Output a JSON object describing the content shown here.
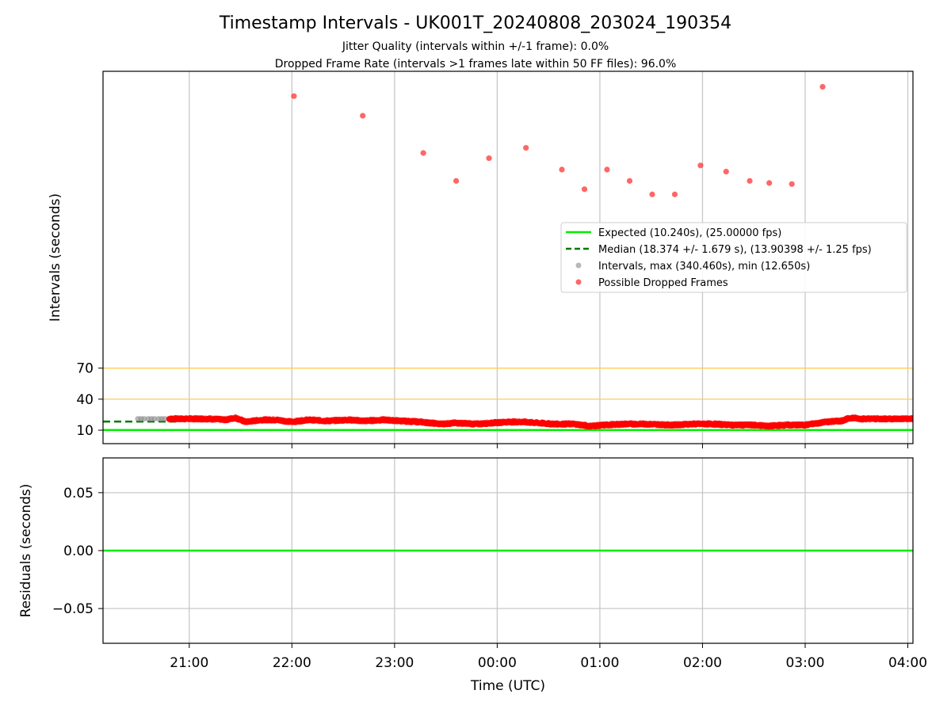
{
  "figure": {
    "title": "Timestamp Intervals - UK001T_20240808_203024_190354",
    "subtitle_1": "Jitter Quality (intervals within +/-1 frame): 0.0%",
    "subtitle_2": "Dropped Frame Rate (intervals >1 frames late within 50 FF files): 96.0%"
  },
  "colors": {
    "expected": "#00ee00",
    "median": "#007700",
    "dropped": "#ff0000",
    "intervals": "#888888",
    "threshold": "#ffcc55",
    "grid": "#c8c8c8"
  },
  "chart_data": [
    {
      "id": "intervals",
      "type": "scatter",
      "xlabel": "",
      "ylabel": "Intervals (seconds)",
      "x_unit": "hours_since_midnight_2024-08-08_UTC",
      "xlim": [
        20.16,
        28.05
      ],
      "ylim": [
        -3,
        357
      ],
      "yticks": [
        10,
        40,
        70
      ],
      "xticks": [
        21,
        22,
        23,
        24,
        25,
        26,
        27,
        28
      ],
      "xticklabels": [
        "21:00",
        "22:00",
        "23:00",
        "00:00",
        "01:00",
        "02:00",
        "03:00",
        "04:00"
      ],
      "grid": "vertical",
      "legend_position": "center-right",
      "legend": [
        {
          "label": "Expected (10.240s), (25.00000 fps)",
          "kind": "line"
        },
        {
          "label": "Median (18.374 +/- 1.679 s), (13.90398 +/- 1.25 fps)",
          "kind": "dashed"
        },
        {
          "label": "Intervals, max (340.460s), min (12.650s)",
          "kind": "dot-gray"
        },
        {
          "label": "Possible Dropped Frames",
          "kind": "dot-red"
        }
      ],
      "lines": {
        "expected": 10.24,
        "median": 18.374,
        "median_x_start": 20.16,
        "median_x_end": 20.87,
        "thresholds": [
          40,
          70
        ]
      },
      "series": [
        {
          "name": "Intervals, max (340.460s), min (12.650s)",
          "points": [
            {
              "x": 20.5,
              "y": 21
            },
            {
              "x": 20.53,
              "y": 21
            },
            {
              "x": 20.56,
              "y": 21
            },
            {
              "x": 20.6,
              "y": 21
            },
            {
              "x": 20.63,
              "y": 21
            },
            {
              "x": 20.66,
              "y": 21
            },
            {
              "x": 20.7,
              "y": 21
            },
            {
              "x": 20.73,
              "y": 21
            },
            {
              "x": 20.76,
              "y": 21
            }
          ]
        },
        {
          "name": "Possible Dropped Frames",
          "outliers": [
            {
              "x": 22.02,
              "y": 333
            },
            {
              "x": 22.69,
              "y": 314
            },
            {
              "x": 23.28,
              "y": 278
            },
            {
              "x": 23.6,
              "y": 251
            },
            {
              "x": 23.92,
              "y": 273
            },
            {
              "x": 24.28,
              "y": 283
            },
            {
              "x": 24.63,
              "y": 262
            },
            {
              "x": 24.85,
              "y": 243
            },
            {
              "x": 25.07,
              "y": 262
            },
            {
              "x": 25.29,
              "y": 251
            },
            {
              "x": 25.51,
              "y": 238
            },
            {
              "x": 25.73,
              "y": 238
            },
            {
              "x": 25.98,
              "y": 266
            },
            {
              "x": 26.23,
              "y": 260
            },
            {
              "x": 26.46,
              "y": 251
            },
            {
              "x": 26.65,
              "y": 249
            },
            {
              "x": 26.87,
              "y": 248
            },
            {
              "x": 27.17,
              "y": 342
            }
          ],
          "band_profile": [
            [
              20.8,
              21
            ],
            [
              21.0,
              21
            ],
            [
              21.2,
              21
            ],
            [
              21.35,
              20
            ],
            [
              21.45,
              22
            ],
            [
              21.55,
              18
            ],
            [
              21.7,
              20
            ],
            [
              21.85,
              20
            ],
            [
              22.0,
              18
            ],
            [
              22.15,
              20
            ],
            [
              22.35,
              19
            ],
            [
              22.55,
              20
            ],
            [
              22.7,
              19
            ],
            [
              22.9,
              20
            ],
            [
              23.05,
              19
            ],
            [
              23.25,
              18
            ],
            [
              23.45,
              16
            ],
            [
              23.6,
              17
            ],
            [
              23.8,
              16
            ],
            [
              23.95,
              17
            ],
            [
              24.1,
              18
            ],
            [
              24.25,
              18
            ],
            [
              24.4,
              17
            ],
            [
              24.55,
              16
            ],
            [
              24.75,
              16
            ],
            [
              24.9,
              14
            ],
            [
              25.05,
              15
            ],
            [
              25.25,
              16
            ],
            [
              25.45,
              16
            ],
            [
              25.7,
              15
            ],
            [
              25.9,
              16
            ],
            [
              26.1,
              16
            ],
            [
              26.3,
              15
            ],
            [
              26.5,
              15
            ],
            [
              26.65,
              14
            ],
            [
              26.8,
              15
            ],
            [
              27.0,
              15
            ],
            [
              27.2,
              18
            ],
            [
              27.35,
              19
            ],
            [
              27.45,
              22
            ],
            [
              27.55,
              21
            ],
            [
              27.75,
              21
            ],
            [
              28.05,
              21
            ]
          ],
          "band_x_range": [
            20.8,
            28.05
          ],
          "band_count": 2600
        }
      ]
    },
    {
      "id": "residuals",
      "type": "line",
      "xlabel": "Time (UTC)",
      "ylabel": "Residuals (seconds)",
      "xlim": [
        20.16,
        28.05
      ],
      "ylim": [
        -0.08,
        0.08
      ],
      "yticks": [
        -0.05,
        0.0,
        0.05
      ],
      "yticklabels": [
        "−0.05",
        "0.00",
        "0.05"
      ],
      "xticks": [
        21,
        22,
        23,
        24,
        25,
        26,
        27,
        28
      ],
      "xticklabels": [
        "21:00",
        "22:00",
        "23:00",
        "00:00",
        "01:00",
        "02:00",
        "03:00",
        "04:00"
      ],
      "grid": "both",
      "series": [
        {
          "values_x": [
            20.16,
            28.05
          ],
          "values_y": [
            0,
            0
          ]
        }
      ]
    }
  ]
}
